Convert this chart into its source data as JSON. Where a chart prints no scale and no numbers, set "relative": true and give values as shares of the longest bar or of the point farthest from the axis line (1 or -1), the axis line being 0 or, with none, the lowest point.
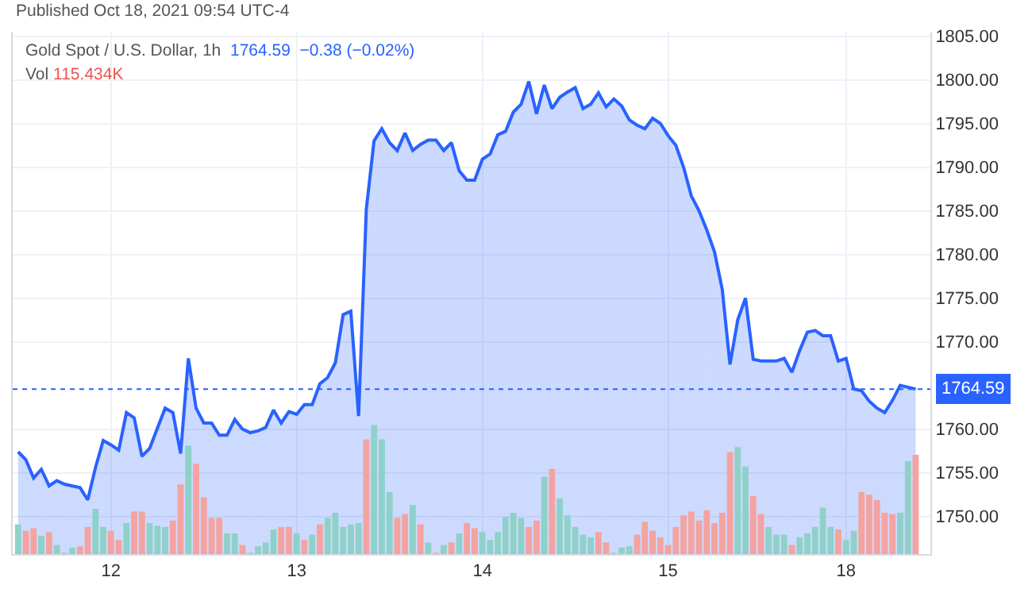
{
  "chart_data": [
    {
      "type": "area",
      "title": "Gold Spot / U.S. Dollar, 1h",
      "annotations": [
        "Published Oct 18, 2021 09:54 UTC-4",
        "1764.59  −0.38 (−0.02%)",
        "Vol",
        "115.434K"
      ],
      "categories": [
        null,
        null,
        null,
        null,
        null,
        null,
        null,
        null,
        null,
        null,
        null,
        null,
        "12",
        null,
        null,
        null,
        null,
        null,
        null,
        null,
        null,
        null,
        null,
        null,
        null,
        null,
        null,
        null,
        null,
        null,
        null,
        null,
        null,
        null,
        null,
        null,
        "13",
        null,
        null,
        null,
        null,
        null,
        null,
        null,
        null,
        null,
        null,
        null,
        null,
        null,
        null,
        null,
        null,
        null,
        null,
        null,
        null,
        null,
        null,
        null,
        "14",
        null,
        null,
        null,
        null,
        null,
        null,
        null,
        null,
        null,
        null,
        null,
        null,
        null,
        null,
        null,
        null,
        null,
        null,
        null,
        null,
        null,
        null,
        null,
        "15",
        null,
        null,
        null,
        null,
        null,
        null,
        null,
        null,
        null,
        null,
        null,
        null,
        null,
        null,
        null,
        null,
        null,
        null,
        null,
        null,
        null,
        null,
        "18",
        null,
        null,
        null,
        null,
        null,
        null,
        null,
        null,
        null
      ],
      "ylim": [
        1745.7,
        1805.5
      ],
      "yticks": [
        {
          "value": 1750,
          "label": "1750.00"
        },
        {
          "value": 1755,
          "label": "1755.00"
        },
        {
          "value": 1760,
          "label": "1760.00"
        },
        {
          "value": 1770,
          "label": "1770.00"
        },
        {
          "value": 1775,
          "label": "1775.00"
        },
        {
          "value": 1780,
          "label": "1780.00"
        },
        {
          "value": 1785,
          "label": "1785.00"
        },
        {
          "value": 1790,
          "label": "1790.00"
        },
        {
          "value": 1795,
          "label": "1795.00"
        },
        {
          "value": 1800,
          "label": "1800.00"
        },
        {
          "value": 1805,
          "label": "1805.00"
        }
      ],
      "grid": true,
      "marker": "none",
      "line_style": "solid",
      "ref_lines": [
        {
          "axis": "y",
          "value": 1764.59,
          "label": "1764.59",
          "color": "#2962ff",
          "line_style": "dotted"
        }
      ],
      "series": [
        {
          "color": "#2962ff",
          "values": [
            1757.4,
            1756.5,
            1754.4,
            1755.4,
            1753.5,
            1754.1,
            1753.7,
            1753.5,
            1753.3,
            1751.9,
            1755.6,
            1758.7,
            1758.2,
            1757.6,
            1761.9,
            1761.3,
            1756.9,
            1757.8,
            1760.1,
            1762.4,
            1761.9,
            1757.2,
            1768.1,
            1762.4,
            1760.7,
            1760.7,
            1759.3,
            1759.3,
            1761.1,
            1760.0,
            1759.6,
            1759.8,
            1760.2,
            1762.2,
            1760.7,
            1762.0,
            1761.7,
            1762.8,
            1762.8,
            1765.2,
            1765.9,
            1767.6,
            1773.1,
            1773.5,
            1761.5,
            1785.2,
            1793.0,
            1794.4,
            1792.8,
            1791.9,
            1793.9,
            1791.9,
            1792.6,
            1793.1,
            1793.1,
            1791.9,
            1792.8,
            1789.6,
            1788.5,
            1788.5,
            1790.9,
            1791.5,
            1793.7,
            1794.1,
            1796.3,
            1797.2,
            1799.8,
            1796.1,
            1799.4,
            1796.7,
            1798.0,
            1798.6,
            1799.1,
            1796.7,
            1797.2,
            1798.5,
            1796.9,
            1797.8,
            1797.0,
            1795.4,
            1794.8,
            1794.4,
            1795.6,
            1795.0,
            1793.6,
            1792.5,
            1790.0,
            1786.7,
            1785.0,
            1782.8,
            1780.3,
            1776.0,
            1767.4,
            1772.5,
            1775.0,
            1768.0,
            1767.8,
            1767.8,
            1767.8,
            1768.1,
            1766.5,
            1769.0,
            1771.1,
            1771.3,
            1770.7,
            1770.7,
            1767.8,
            1768.1,
            1764.6,
            1764.4,
            1763.2,
            1762.4,
            1761.9,
            1763.3,
            1765.0,
            1764.8,
            1764.59
          ]
        }
      ]
    },
    {
      "type": "bar",
      "relative": true,
      "tick_labels": false,
      "categories": [
        null,
        null,
        null,
        null,
        null,
        null,
        null,
        null,
        null,
        null,
        null,
        null,
        "12",
        null,
        null,
        null,
        null,
        null,
        null,
        null,
        null,
        null,
        null,
        null,
        null,
        null,
        null,
        null,
        null,
        null,
        null,
        null,
        null,
        null,
        null,
        null,
        "13",
        null,
        null,
        null,
        null,
        null,
        null,
        null,
        null,
        null,
        null,
        null,
        null,
        null,
        null,
        null,
        null,
        null,
        null,
        null,
        null,
        null,
        null,
        null,
        "14",
        null,
        null,
        null,
        null,
        null,
        null,
        null,
        null,
        null,
        null,
        null,
        null,
        null,
        null,
        null,
        null,
        null,
        null,
        null,
        null,
        null,
        null,
        null,
        "15",
        null,
        null,
        null,
        null,
        null,
        null,
        null,
        null,
        null,
        null,
        null,
        null,
        null,
        null,
        null,
        null,
        null,
        null,
        null,
        null,
        null,
        null,
        "18",
        null,
        null,
        null,
        null,
        null,
        null,
        null,
        null,
        null
      ],
      "values": [
        0.23,
        0.18,
        0.2,
        0.14,
        0.17,
        0.07,
        0.01,
        0.05,
        0.06,
        0.21,
        0.35,
        0.21,
        0.18,
        0.11,
        0.24,
        0.33,
        0.33,
        0.24,
        0.22,
        0.21,
        0.26,
        0.54,
        0.84,
        0.7,
        0.44,
        0.28,
        0.28,
        0.16,
        0.16,
        0.07,
        0.01,
        0.06,
        0.09,
        0.19,
        0.21,
        0.21,
        0.16,
        0.11,
        0.15,
        0.23,
        0.28,
        0.32,
        0.21,
        0.23,
        0.24,
        0.89,
        1,
        0.89,
        0.48,
        0.28,
        0.31,
        0.38,
        0.23,
        0.09,
        0.01,
        0.07,
        0.09,
        0.16,
        0.24,
        0.2,
        0.17,
        0.11,
        0.17,
        0.29,
        0.32,
        0.28,
        0.21,
        0.26,
        0.6,
        0.66,
        0.43,
        0.3,
        0.21,
        0.15,
        0.13,
        0.17,
        0.09,
        0.01,
        0.05,
        0.06,
        0.15,
        0.25,
        0.18,
        0.13,
        0.07,
        0.21,
        0.3,
        0.33,
        0.26,
        0.34,
        0.24,
        0.32,
        0.79,
        0.83,
        0.68,
        0.45,
        0.31,
        0.21,
        0.15,
        0.15,
        0.07,
        0.13,
        0.16,
        0.21,
        0.36,
        0.21,
        0.19,
        0.11,
        0.18,
        0.48,
        0.46,
        0.42,
        0.32,
        0.31,
        0.32,
        0.72,
        0.77
      ],
      "colors": [
        "#8fd1c8",
        "#f4a3a0",
        "#f4a3a0",
        "#8fd1c8",
        "#f4a3a0",
        "#8fd1c8",
        "#8fd1c8",
        "#8fd1c8",
        "#f4a3a0",
        "#f4a3a0",
        "#8fd1c8",
        "#8fd1c8",
        "#f4a3a0",
        "#f4a3a0",
        "#8fd1c8",
        "#f4a3a0",
        "#f4a3a0",
        "#8fd1c8",
        "#8fd1c8",
        "#8fd1c8",
        "#f4a3a0",
        "#f4a3a0",
        "#8fd1c8",
        "#f4a3a0",
        "#f4a3a0",
        "#f4a3a0",
        "#f4a3a0",
        "#8fd1c8",
        "#8fd1c8",
        "#f4a3a0",
        "#8fd1c8",
        "#8fd1c8",
        "#8fd1c8",
        "#8fd1c8",
        "#f4a3a0",
        "#f4a3a0",
        "#8fd1c8",
        "#f4a3a0",
        "#8fd1c8",
        "#f4a3a0",
        "#8fd1c8",
        "#8fd1c8",
        "#8fd1c8",
        "#8fd1c8",
        "#8fd1c8",
        "#f4a3a0",
        "#8fd1c8",
        "#8fd1c8",
        "#8fd1c8",
        "#f4a3a0",
        "#f4a3a0",
        "#8fd1c8",
        "#f4a3a0",
        "#8fd1c8",
        "#f4a3a0",
        "#8fd1c8",
        "#f4a3a0",
        "#8fd1c8",
        "#f4a3a0",
        "#f4a3a0",
        "#8fd1c8",
        "#8fd1c8",
        "#8fd1c8",
        "#8fd1c8",
        "#8fd1c8",
        "#8fd1c8",
        "#f4a3a0",
        "#f4a3a0",
        "#8fd1c8",
        "#f4a3a0",
        "#8fd1c8",
        "#8fd1c8",
        "#8fd1c8",
        "#8fd1c8",
        "#8fd1c8",
        "#f4a3a0",
        "#f4a3a0",
        "#8fd1c8",
        "#8fd1c8",
        "#8fd1c8",
        "#f4a3a0",
        "#f4a3a0",
        "#f4a3a0",
        "#f4a3a0",
        "#f4a3a0",
        "#f4a3a0",
        "#f4a3a0",
        "#f4a3a0",
        "#f4a3a0",
        "#f4a3a0",
        "#f4a3a0",
        "#f4a3a0",
        "#f4a3a0",
        "#8fd1c8",
        "#8fd1c8",
        "#f4a3a0",
        "#f4a3a0",
        "#8fd1c8",
        "#8fd1c8",
        "#8fd1c8",
        "#f4a3a0",
        "#8fd1c8",
        "#8fd1c8",
        "#8fd1c8",
        "#8fd1c8",
        "#8fd1c8",
        "#f4a3a0",
        "#8fd1c8",
        "#8fd1c8",
        "#f4a3a0",
        "#f4a3a0",
        "#f4a3a0",
        "#f4a3a0",
        "#f4a3a0",
        "#8fd1c8",
        "#8fd1c8",
        "#f4a3a0"
      ]
    }
  ]
}
